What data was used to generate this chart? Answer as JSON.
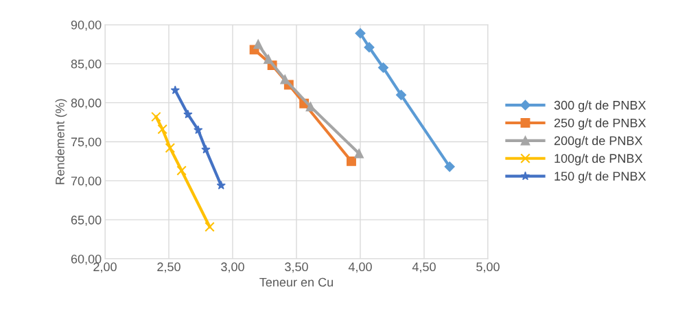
{
  "chart_data": {
    "type": "line",
    "xlabel": "Teneur en Cu",
    "ylabel": "Rendement (%)",
    "xlim": [
      2,
      5
    ],
    "ylim": [
      60,
      90
    ],
    "xticks": [
      {
        "value": 2,
        "label": "2,00"
      },
      {
        "value": 2.5,
        "label": "2,50"
      },
      {
        "value": 3,
        "label": "3,00"
      },
      {
        "value": 3.5,
        "label": "3,50"
      },
      {
        "value": 4,
        "label": "4,00"
      },
      {
        "value": 4.5,
        "label": "4,50"
      },
      {
        "value": 5,
        "label": "5,00"
      }
    ],
    "yticks": [
      {
        "value": 60,
        "label": "60,00"
      },
      {
        "value": 65,
        "label": "65,00"
      },
      {
        "value": 70,
        "label": "70,00"
      },
      {
        "value": 75,
        "label": "75,00"
      },
      {
        "value": 80,
        "label": "80,00"
      },
      {
        "value": 85,
        "label": "85,00"
      },
      {
        "value": 90,
        "label": "90,00"
      }
    ],
    "grid": true,
    "legend": "right",
    "line_style": "solid",
    "series": [
      {
        "name": "300 g/t de PNBX",
        "color": "#5b9bd5",
        "marker": "diamond",
        "x": [
          4.0,
          4.07,
          4.18,
          4.32,
          4.7
        ],
        "values": [
          88.9,
          87.1,
          84.5,
          81.0,
          71.8
        ]
      },
      {
        "name": "250 g/t de PNBX",
        "color": "#ed7d31",
        "marker": "square",
        "x": [
          3.17,
          3.31,
          3.44,
          3.56,
          3.93
        ],
        "values": [
          86.8,
          84.8,
          82.3,
          79.9,
          72.5
        ]
      },
      {
        "name": "200g/t de PNBX",
        "color": "#a5a5a5",
        "marker": "triangle",
        "x": [
          3.2,
          3.28,
          3.41,
          3.61,
          3.99
        ],
        "values": [
          87.5,
          85.6,
          83.0,
          79.5,
          73.5
        ]
      },
      {
        "name": "100g/t de PNBX",
        "color": "#ffc000",
        "marker": "cross",
        "x": [
          2.4,
          2.45,
          2.51,
          2.6,
          2.82
        ],
        "values": [
          78.2,
          76.6,
          74.2,
          71.3,
          64.1
        ]
      },
      {
        "name": "150 g/t de PNBX",
        "color": "#4472c4",
        "marker": "star",
        "x": [
          2.55,
          2.65,
          2.73,
          2.79,
          2.91
        ],
        "values": [
          81.6,
          78.5,
          76.5,
          74.0,
          69.4
        ]
      }
    ]
  }
}
